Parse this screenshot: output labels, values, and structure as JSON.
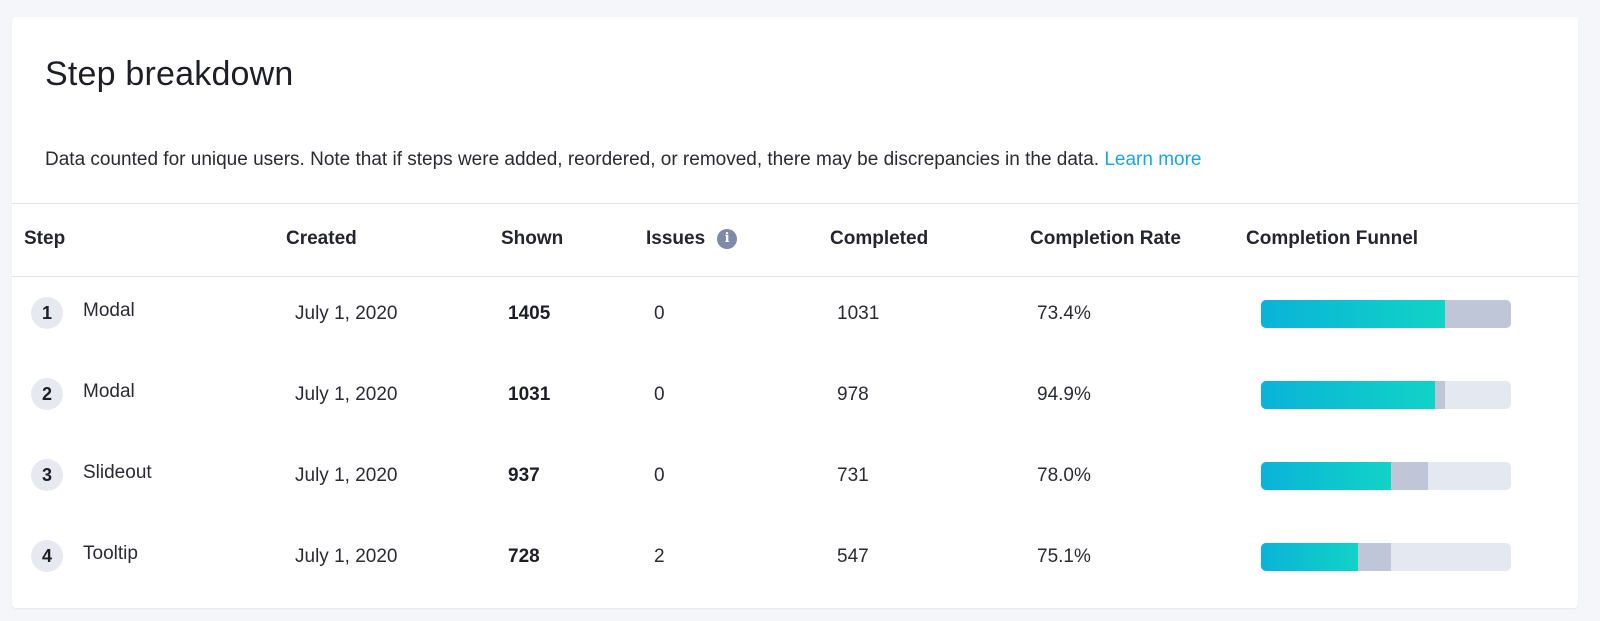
{
  "header": {
    "title": "Step breakdown",
    "description": "Data counted for unique users. Note that if steps were added, reordered, or removed, there may be discrepancies in the data.",
    "learn_more_label": "Learn more"
  },
  "table": {
    "columns": {
      "step": "Step",
      "created": "Created",
      "shown": "Shown",
      "issues": "Issues",
      "completed": "Completed",
      "completion_rate": "Completion Rate",
      "completion_funnel": "Completion Funnel"
    },
    "issues_info_icon": "info-icon",
    "rows": [
      {
        "num": "1",
        "name": "Modal",
        "created": "July 1, 2020",
        "shown": "1405",
        "issues": "0",
        "completed": "1031",
        "rate": "73.4%",
        "funnel": {
          "shown_fraction": 1.0,
          "completed_fraction": 0.734
        }
      },
      {
        "num": "2",
        "name": "Modal",
        "created": "July 1, 2020",
        "shown": "1031",
        "issues": "0",
        "completed": "978",
        "rate": "94.9%",
        "funnel": {
          "shown_fraction": 0.734,
          "completed_fraction": 0.696
        }
      },
      {
        "num": "3",
        "name": "Slideout",
        "created": "July 1, 2020",
        "shown": "937",
        "issues": "0",
        "completed": "731",
        "rate": "78.0%",
        "funnel": {
          "shown_fraction": 0.667,
          "completed_fraction": 0.52
        }
      },
      {
        "num": "4",
        "name": "Tooltip",
        "created": "July 1, 2020",
        "shown": "728",
        "issues": "2",
        "completed": "547",
        "rate": "75.1%",
        "funnel": {
          "shown_fraction": 0.518,
          "completed_fraction": 0.389
        }
      }
    ]
  },
  "colors": {
    "link": "#1aa6e3",
    "funnel_completed_start": "#0ab3d8",
    "funnel_completed_end": "#11d3c6",
    "funnel_dropoff": "#bfc6d7",
    "funnel_track": "#e4e8f0"
  }
}
